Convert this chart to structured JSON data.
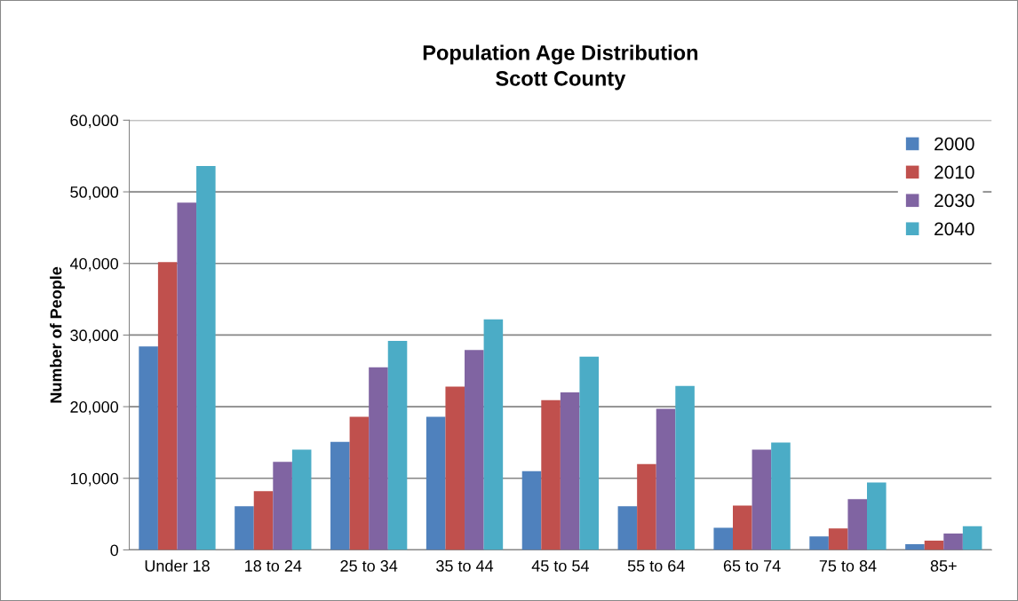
{
  "chart_data": {
    "type": "bar",
    "title": "Population Age Distribution\nScott County",
    "ylabel": "Number of People",
    "categories": [
      "Under 18",
      "18 to 24",
      "25 to 34",
      "35 to 44",
      "45 to 54",
      "55 to 64",
      "65 to 74",
      "75 to 84",
      "85+"
    ],
    "series": [
      {
        "name": "2000",
        "color": "#4f81bd",
        "values": [
          28400,
          6100,
          15100,
          18600,
          11000,
          6100,
          3100,
          1900,
          800
        ]
      },
      {
        "name": "2010",
        "color": "#c0504d",
        "values": [
          40200,
          8200,
          18600,
          22800,
          20900,
          12000,
          6200,
          3000,
          1300
        ]
      },
      {
        "name": "2030",
        "color": "#8064a2",
        "values": [
          48500,
          12300,
          25500,
          27900,
          22000,
          19700,
          14000,
          7100,
          2300
        ]
      },
      {
        "name": "2040",
        "color": "#4bacc6",
        "values": [
          53600,
          14000,
          29200,
          32200,
          27000,
          22900,
          15000,
          9400,
          3300
        ]
      }
    ],
    "ylim": [
      0,
      60000
    ],
    "yticks": [
      {
        "value": 0,
        "label": "0"
      },
      {
        "value": 10000,
        "label": "10,000"
      },
      {
        "value": 20000,
        "label": "20,000"
      },
      {
        "value": 30000,
        "label": "30,000"
      },
      {
        "value": 40000,
        "label": "40,000"
      },
      {
        "value": 50000,
        "label": "50,000"
      },
      {
        "value": 60000,
        "label": "60,000"
      }
    ],
    "grid": "y",
    "legend": "top right"
  }
}
